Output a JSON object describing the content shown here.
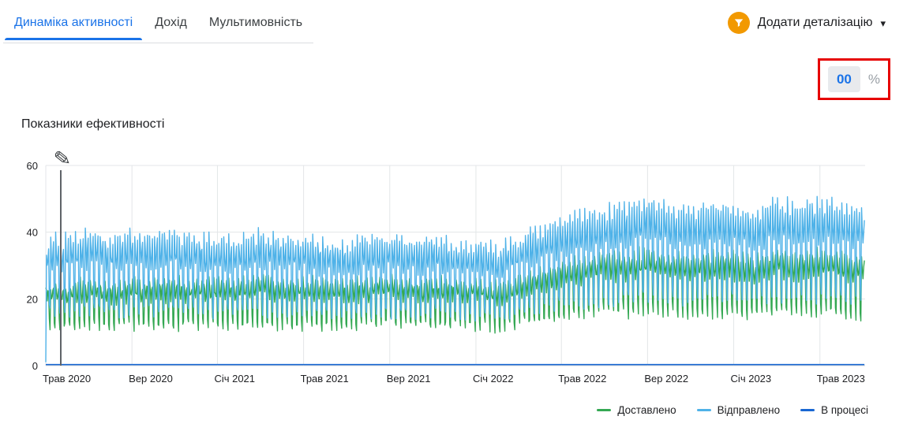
{
  "tabs": [
    {
      "label": "Динаміка активності",
      "active": true
    },
    {
      "label": "Дохід",
      "active": false
    },
    {
      "label": "Мультимовність",
      "active": false
    }
  ],
  "header": {
    "add_detail_label": "Додати деталізацію"
  },
  "icons": {
    "dropdown_chevron": "▾",
    "pencil": "✎",
    "funnel": "funnel-icon"
  },
  "annotation": {
    "value": "00",
    "unit": "%"
  },
  "section": {
    "title": "Показники ефективності"
  },
  "legend": [
    {
      "label": "Доставлено",
      "color": "#34a853"
    },
    {
      "label": "Відправлено",
      "color": "#4fb2e8"
    },
    {
      "label": "В процесі",
      "color": "#1967d2"
    }
  ],
  "colors": {
    "accent_blue": "#1a73e8",
    "tab_inactive": "#3c4043",
    "funnel_orange": "#f29900",
    "highlight_red": "#e60000",
    "grid": "#e3e6e8",
    "axis_text": "#202124"
  },
  "chart_data": {
    "type": "line",
    "title": "Показники ефективності",
    "ylim": [
      0,
      60
    ],
    "y_ticks": [
      0,
      20,
      40,
      60
    ],
    "x_ticks": [
      "Трав 2020",
      "Вер 2020",
      "Січ 2021",
      "Трав 2021",
      "Вер 2021",
      "Січ 2022",
      "Трав 2022",
      "Вер 2022",
      "Січ 2023",
      "Трав 2023"
    ],
    "x_tick_days": [
      0,
      122,
      243,
      365,
      487,
      609,
      730,
      852,
      974,
      1096
    ],
    "total_days": 1160,
    "grid": true,
    "legend_position": "bottom-right",
    "series": [
      {
        "name": "Доставлено",
        "color": "#34a853",
        "monthly_mean": [
          18,
          18,
          19,
          18,
          19,
          19,
          19,
          19,
          19,
          19,
          20,
          19,
          19,
          19,
          19,
          19,
          20,
          19,
          19,
          19,
          19,
          18,
          20,
          21,
          23,
          24,
          25,
          25,
          26,
          25,
          25,
          25,
          25,
          24,
          26,
          25,
          26,
          25,
          24
        ],
        "weekly_pattern": [
          0.9,
          0.5,
          0.15,
          0.45,
          0.75,
          -0.75,
          -1
        ],
        "rel_amplitude": 0.38,
        "noise": 1.6,
        "seed": 7
      },
      {
        "name": "Відправлено",
        "color": "#4fb2e8",
        "monthly_mean": [
          27,
          27,
          28,
          27,
          28,
          28,
          28,
          27,
          27,
          27,
          28,
          27,
          27,
          26,
          26,
          27,
          27,
          26,
          27,
          26,
          26,
          25,
          27,
          29,
          31,
          32,
          33,
          34,
          35,
          34,
          33,
          34,
          34,
          33,
          35,
          34,
          35,
          34,
          33
        ],
        "weekly_pattern": [
          1,
          0.55,
          0.2,
          0.5,
          0.85,
          -0.7,
          -1
        ],
        "rel_amplitude": 0.42,
        "noise": 1.8,
        "seed": 13,
        "start_zero": true
      },
      {
        "name": "В процесі",
        "color": "#1967d2",
        "constant": 0.3
      }
    ]
  }
}
